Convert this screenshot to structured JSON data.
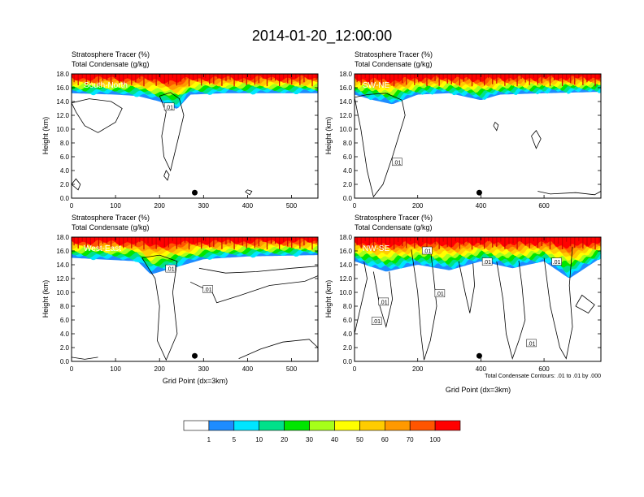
{
  "title": "2014-01-20_12:00:00",
  "colors": {
    "bands": [
      "#ffffff",
      "#1e8cff",
      "#00e5ff",
      "#00e08a",
      "#00e600",
      "#a6ff1a",
      "#ffff00",
      "#ffcc00",
      "#ff9900",
      "#ff5500",
      "#ff0000"
    ],
    "contour": "#000000",
    "marker": "#000000"
  },
  "labelbar": {
    "ticks": [
      "1",
      "5",
      "10",
      "20",
      "30",
      "40",
      "50",
      "60",
      "70",
      "100"
    ]
  },
  "contour_info": "Total Condensate Contours: .01 to .01 by .000",
  "chart_data": [
    {
      "type": "heatmap",
      "tag": "South-North",
      "title_line1": "Stratosphere Tracer   (%)",
      "title_line2": "Total Condensate   (g/kg)",
      "ylabel": "Height (km)",
      "xlabel": "",
      "xlim": [
        0,
        560
      ],
      "ylim": [
        0,
        18
      ],
      "xticks": [
        "0",
        "100",
        "200",
        "300",
        "400",
        "500"
      ],
      "yticks": [
        "0.0",
        "2.0",
        "4.0",
        "6.0",
        "8.0",
        "10.0",
        "12.0",
        "14.0",
        "16.0",
        "18.0"
      ],
      "tracer_floor_km": [
        [
          0,
          15.2
        ],
        [
          100,
          15.0
        ],
        [
          150,
          14.8
        ],
        [
          200,
          14.0
        ],
        [
          240,
          12.9
        ],
        [
          270,
          15.0
        ],
        [
          350,
          15.2
        ],
        [
          450,
          15.2
        ],
        [
          560,
          15.2
        ]
      ],
      "contour_labels": [
        {
          "x": 222,
          "y": 13.2,
          "text": ".01"
        }
      ],
      "marker": {
        "x": 280,
        "y": 0.8
      }
    },
    {
      "type": "heatmap",
      "tag": "SW-NE",
      "title_line1": "Stratosphere Tracer   (%)",
      "title_line2": "Total Condensate   (g/kg)",
      "ylabel": "Height (km)",
      "xlabel": "",
      "xlim": [
        0,
        780
      ],
      "ylim": [
        0,
        18
      ],
      "xticks": [
        "0",
        "200",
        "400",
        "600"
      ],
      "yticks": [
        "0.0",
        "2.0",
        "4.0",
        "6.0",
        "8.0",
        "10.0",
        "12.0",
        "14.0",
        "16.0",
        "18.0"
      ],
      "tracer_floor_km": [
        [
          0,
          15.0
        ],
        [
          60,
          14.2
        ],
        [
          120,
          13.6
        ],
        [
          200,
          15.0
        ],
        [
          300,
          15.2
        ],
        [
          400,
          14.2
        ],
        [
          460,
          15.0
        ],
        [
          600,
          15.2
        ],
        [
          780,
          15.4
        ]
      ],
      "contour_labels": [
        {
          "x": 135,
          "y": 5.2,
          "text": ".01"
        }
      ],
      "marker": {
        "x": 395,
        "y": 0.8
      }
    },
    {
      "type": "heatmap",
      "tag": "West-East",
      "title_line1": "Stratosphere Tracer   (%)",
      "title_line2": "Total Condensate   (g/kg)",
      "ylabel": "Height (km)",
      "xlabel": "Grid Point (dx=3km)",
      "xlim": [
        0,
        560
      ],
      "ylim": [
        0,
        18
      ],
      "xticks": [
        "0",
        "100",
        "200",
        "300",
        "400",
        "500"
      ],
      "yticks": [
        "0.0",
        "2.0",
        "4.0",
        "6.0",
        "8.0",
        "10.0",
        "12.0",
        "14.0",
        "16.0",
        "18.0"
      ],
      "tracer_floor_km": [
        [
          0,
          15.0
        ],
        [
          150,
          14.5
        ],
        [
          180,
          12.6
        ],
        [
          230,
          13.5
        ],
        [
          300,
          14.8
        ],
        [
          400,
          15.2
        ],
        [
          560,
          15.4
        ]
      ],
      "contour_labels": [
        {
          "x": 225,
          "y": 13.4,
          "text": ".01"
        },
        {
          "x": 310,
          "y": 10.4,
          "text": ".01"
        }
      ],
      "marker": {
        "x": 280,
        "y": 0.8
      }
    },
    {
      "type": "heatmap",
      "tag": "NW-SE",
      "title_line1": "Stratosphere Tracer   (%)",
      "title_line2": "Total Condensate   (g/kg)",
      "ylabel": "Height (km)",
      "xlabel": "Grid Point (dx=3km)",
      "xlim": [
        0,
        780
      ],
      "ylim": [
        0,
        18
      ],
      "xticks": [
        "0",
        "200",
        "400",
        "600"
      ],
      "yticks": [
        "0.0",
        "2.0",
        "4.0",
        "6.0",
        "8.0",
        "10.0",
        "12.0",
        "14.0",
        "16.0",
        "18.0"
      ],
      "tracer_floor_km": [
        [
          0,
          14.5
        ],
        [
          100,
          13.0
        ],
        [
          200,
          14.0
        ],
        [
          300,
          13.2
        ],
        [
          400,
          14.5
        ],
        [
          500,
          13.5
        ],
        [
          600,
          14.5
        ],
        [
          680,
          12.0
        ],
        [
          780,
          15.0
        ]
      ],
      "contour_labels": [
        {
          "x": 230,
          "y": 16.0,
          "text": ".01"
        },
        {
          "x": 420,
          "y": 14.4,
          "text": ".01"
        },
        {
          "x": 640,
          "y": 14.4,
          "text": ".01"
        },
        {
          "x": 92,
          "y": 8.6,
          "text": ".01"
        },
        {
          "x": 270,
          "y": 9.8,
          "text": ".01"
        },
        {
          "x": 70,
          "y": 5.8,
          "text": ".01"
        },
        {
          "x": 560,
          "y": 2.6,
          "text": ".01"
        }
      ],
      "marker": {
        "x": 395,
        "y": 0.8
      }
    }
  ]
}
